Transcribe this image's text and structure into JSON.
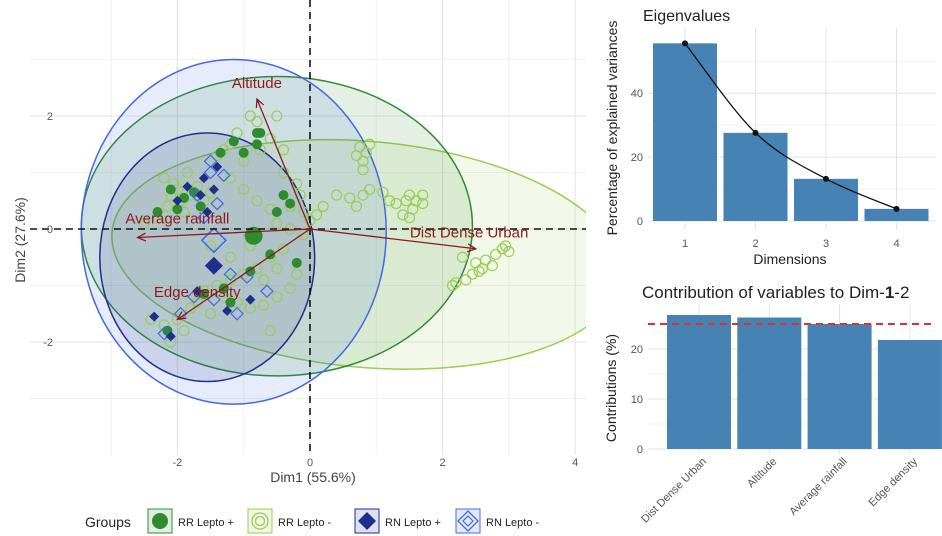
{
  "colors": {
    "rr_pos": "#2e8b2e",
    "rr_neg": "#9acd50",
    "rn_pos": "#1f2e8c",
    "rn_neg": "#4169e1",
    "arrow": "#8b1a1a",
    "bar": "#4682b4",
    "refline": "#e03030"
  },
  "chart_data": [
    {
      "type": "scatter",
      "subtype": "pca-biplot",
      "xlabel": "Dim1 (55.6%)",
      "ylabel": "Dim2 (27.6%)",
      "xlim": [
        -3.6,
        4.1
      ],
      "ylim": [
        -3.7,
        3.3
      ],
      "xticks": [
        -2,
        0,
        2,
        4
      ],
      "yticks": [
        -2,
        0,
        2
      ],
      "grid": true,
      "legend": {
        "title": "Groups",
        "position": "bottom",
        "items": [
          {
            "key": "rr_pos",
            "label": "RR Lepto +"
          },
          {
            "key": "rr_neg",
            "label": "RR Lepto -"
          },
          {
            "key": "rn_pos",
            "label": "RN Lepto +"
          },
          {
            "key": "rn_neg",
            "label": "RN Lepto -"
          }
        ]
      },
      "variables": [
        {
          "name": "Altitude",
          "x": -0.8,
          "y": 2.3,
          "label_x": -0.8,
          "label_y": 2.5
        },
        {
          "name": "Average rainfall",
          "x": -2.6,
          "y": -0.15,
          "label_x": -2.0,
          "label_y": 0.1
        },
        {
          "name": "Dist Dense Urban",
          "x": 2.5,
          "y": -0.35,
          "label_x": 2.4,
          "label_y": -0.15
        },
        {
          "name": "Edge density",
          "x": -2.0,
          "y": -1.6,
          "label_x": -1.7,
          "label_y": -1.2
        }
      ],
      "ellipses": [
        {
          "group": "rr_neg",
          "cx": 0.85,
          "cy": -0.45,
          "rx": 3.85,
          "ry": 2.0,
          "angle": 5
        },
        {
          "group": "rr_pos",
          "cx": -0.5,
          "cy": 0.05,
          "rx": 2.95,
          "ry": 2.65,
          "angle": 0
        },
        {
          "group": "rn_neg",
          "cx": -1.15,
          "cy": -0.05,
          "rx": 2.3,
          "ry": 3.05,
          "angle": 0
        },
        {
          "group": "rn_pos",
          "cx": -1.55,
          "cy": -0.5,
          "rx": 1.62,
          "ry": 2.2,
          "angle": 0
        }
      ],
      "centroids": [
        {
          "group": "rr_pos",
          "x": -0.85,
          "y": -0.12
        },
        {
          "group": "rn_neg",
          "x": -1.45,
          "y": -0.2
        },
        {
          "group": "rn_pos",
          "x": -1.45,
          "y": -0.65
        }
      ],
      "points": {
        "rr_neg": [
          [
            -2.1,
            0.6
          ],
          [
            -2.0,
            0.7
          ],
          [
            -1.95,
            0.5
          ],
          [
            -2.05,
            0.8
          ],
          [
            -1.8,
            0.6
          ],
          [
            -1.9,
            0.3
          ],
          [
            -2.15,
            0.4
          ],
          [
            -1.7,
            0.75
          ],
          [
            -1.6,
            0.5
          ],
          [
            -1.5,
            0.65
          ],
          [
            -2.2,
            0.9
          ],
          [
            -1.85,
            1.0
          ],
          [
            -1.3,
            1.4
          ],
          [
            -1.2,
            1.5
          ],
          [
            -1.4,
            1.3
          ],
          [
            -1.1,
            1.7
          ],
          [
            -0.8,
            1.9
          ],
          [
            -0.6,
            1.6
          ],
          [
            -0.75,
            1.4
          ],
          [
            -1.0,
            1.2
          ],
          [
            -0.9,
            2.0
          ],
          [
            -0.5,
            2.0
          ],
          [
            -1.2,
            0.9
          ],
          [
            -1.0,
            0.7
          ],
          [
            -0.8,
            0.5
          ],
          [
            -0.6,
            0.35
          ],
          [
            -0.3,
            0.4
          ],
          [
            -0.1,
            0.3
          ],
          [
            0.1,
            0.25
          ],
          [
            0.2,
            0.4
          ],
          [
            0.4,
            0.6
          ],
          [
            0.6,
            0.55
          ],
          [
            0.8,
            0.6
          ],
          [
            -0.5,
            0.1
          ],
          [
            -0.3,
            0.0
          ],
          [
            -0.1,
            -0.1
          ],
          [
            0.0,
            0.15
          ],
          [
            -0.4,
            -0.35
          ],
          [
            -0.6,
            -0.5
          ],
          [
            -0.8,
            -0.7
          ],
          [
            -1.0,
            -0.8
          ],
          [
            -1.2,
            -0.9
          ],
          [
            -1.4,
            -1.0
          ],
          [
            -1.6,
            -1.1
          ],
          [
            -1.8,
            -1.4
          ],
          [
            -2.0,
            -1.6
          ],
          [
            -2.2,
            -1.7
          ],
          [
            -2.4,
            -1.6
          ],
          [
            -1.7,
            -1.3
          ],
          [
            -1.3,
            -1.2
          ],
          [
            -1.1,
            -1.3
          ],
          [
            -0.9,
            -1.4
          ],
          [
            -0.7,
            -1.35
          ],
          [
            -0.5,
            -1.2
          ],
          [
            -0.3,
            -1.05
          ],
          [
            -0.2,
            -0.8
          ],
          [
            -0.5,
            -0.7
          ],
          [
            -0.7,
            -0.9
          ],
          [
            -1.5,
            -1.5
          ],
          [
            -1.9,
            -1.8
          ],
          [
            -2.1,
            -2.0
          ],
          [
            0.9,
            0.7
          ],
          [
            1.1,
            0.65
          ],
          [
            0.7,
            0.4
          ],
          [
            1.2,
            0.5
          ],
          [
            -2.5,
            0.1
          ],
          [
            -2.3,
            0.2
          ],
          [
            -0.4,
            1.0
          ],
          [
            -0.2,
            0.8
          ],
          [
            -0.15,
            0.6
          ],
          [
            -0.4,
            1.4
          ],
          [
            -1.5,
            -0.3
          ],
          [
            -1.2,
            -0.5
          ],
          [
            -0.9,
            -0.3
          ],
          [
            1.5,
            0.6
          ],
          [
            1.7,
            0.6
          ],
          [
            -0.6,
            -1.8
          ]
        ],
        "rr_neg_right": [
          [
            0.7,
            1.3
          ],
          [
            0.75,
            1.45
          ],
          [
            0.8,
            1.2
          ],
          [
            0.85,
            1.35
          ],
          [
            0.9,
            1.5
          ],
          [
            0.8,
            1.05
          ],
          [
            1.3,
            0.45
          ],
          [
            1.45,
            0.5
          ],
          [
            1.55,
            0.35
          ],
          [
            1.4,
            0.25
          ],
          [
            1.6,
            0.5
          ],
          [
            1.7,
            0.45
          ],
          [
            1.5,
            0.2
          ],
          [
            2.3,
            -0.5
          ],
          [
            2.5,
            -0.6
          ],
          [
            2.6,
            -0.7
          ],
          [
            2.75,
            -0.65
          ],
          [
            2.8,
            -0.45
          ],
          [
            2.9,
            -0.35
          ],
          [
            2.95,
            -0.3
          ],
          [
            2.45,
            -0.8
          ],
          [
            2.35,
            -0.9
          ],
          [
            2.2,
            -0.95
          ],
          [
            2.15,
            -1.0
          ],
          [
            2.65,
            -0.55
          ],
          [
            3.0,
            -0.4
          ],
          [
            2.55,
            -0.75
          ]
        ],
        "rr_pos": [
          [
            -2.1,
            0.7
          ],
          [
            -1.9,
            0.55
          ],
          [
            -2.0,
            0.35
          ],
          [
            -1.75,
            0.65
          ],
          [
            -1.35,
            1.35
          ],
          [
            -1.15,
            1.55
          ],
          [
            -1.0,
            1.35
          ],
          [
            -0.75,
            1.7
          ],
          [
            -0.8,
            1.5
          ],
          [
            -0.3,
            0.45
          ],
          [
            -0.5,
            0.3
          ],
          [
            -0.6,
            -0.45
          ],
          [
            -0.9,
            -0.75
          ],
          [
            -1.3,
            -1.05
          ],
          [
            -1.6,
            -1.15
          ],
          [
            -1.2,
            -1.3
          ],
          [
            -2.15,
            -1.8
          ],
          [
            -0.4,
            0.6
          ],
          [
            -1.65,
            0.4
          ],
          [
            -0.2,
            -0.6
          ],
          [
            -2.3,
            0.3
          ],
          [
            -0.8,
            1.7
          ]
        ],
        "rn_pos": [
          [
            -2.0,
            0.5
          ],
          [
            -1.85,
            0.75
          ],
          [
            -1.6,
            0.9
          ],
          [
            -1.4,
            1.1
          ],
          [
            -1.55,
            0.3
          ],
          [
            -1.45,
            0.7
          ],
          [
            -2.35,
            -1.55
          ],
          [
            -2.1,
            -1.9
          ],
          [
            -1.25,
            -1.45
          ],
          [
            -0.9,
            -1.25
          ],
          [
            -1.7,
            -1.1
          ],
          [
            -1.65,
            0.6
          ]
        ],
        "rn_neg": [
          [
            -1.7,
            0.6
          ],
          [
            -1.5,
            1.0
          ],
          [
            -1.4,
            0.45
          ],
          [
            -1.6,
            0.2
          ],
          [
            -1.3,
            0.95
          ],
          [
            -2.2,
            -1.85
          ],
          [
            -1.95,
            -1.5
          ],
          [
            -1.75,
            -1.2
          ],
          [
            -1.2,
            -0.8
          ],
          [
            -0.95,
            -0.85
          ],
          [
            -1.1,
            -1.5
          ],
          [
            -1.45,
            -1.25
          ],
          [
            -0.65,
            -1.1
          ],
          [
            -1.5,
            1.2
          ]
        ]
      }
    },
    {
      "type": "bar",
      "title": "Eigenvalues",
      "xlabel": "Dimensions",
      "ylabel": "Percentage of explained variances",
      "categories": [
        "1",
        "2",
        "3",
        "4"
      ],
      "values": [
        55.6,
        27.6,
        13.2,
        3.8
      ],
      "ylim": [
        0,
        57
      ],
      "yticks": [
        0,
        20,
        40
      ],
      "line": true,
      "grid": true
    },
    {
      "type": "bar",
      "title": "Contribution of variables to Dim-1-2",
      "title_prefix": "Contribution of variables to Dim-",
      "title_bold": "1",
      "title_suffix": "-2",
      "xlabel": "",
      "ylabel": "Contributions (%)",
      "categories": [
        "Dist Dense Urban",
        "Altitude",
        "Average rainfall",
        "Edge density"
      ],
      "values": [
        26.8,
        26.3,
        25.0,
        21.8
      ],
      "reference_line": 25,
      "ylim": [
        0,
        28
      ],
      "yticks": [
        0,
        10,
        20
      ],
      "grid": true
    }
  ]
}
